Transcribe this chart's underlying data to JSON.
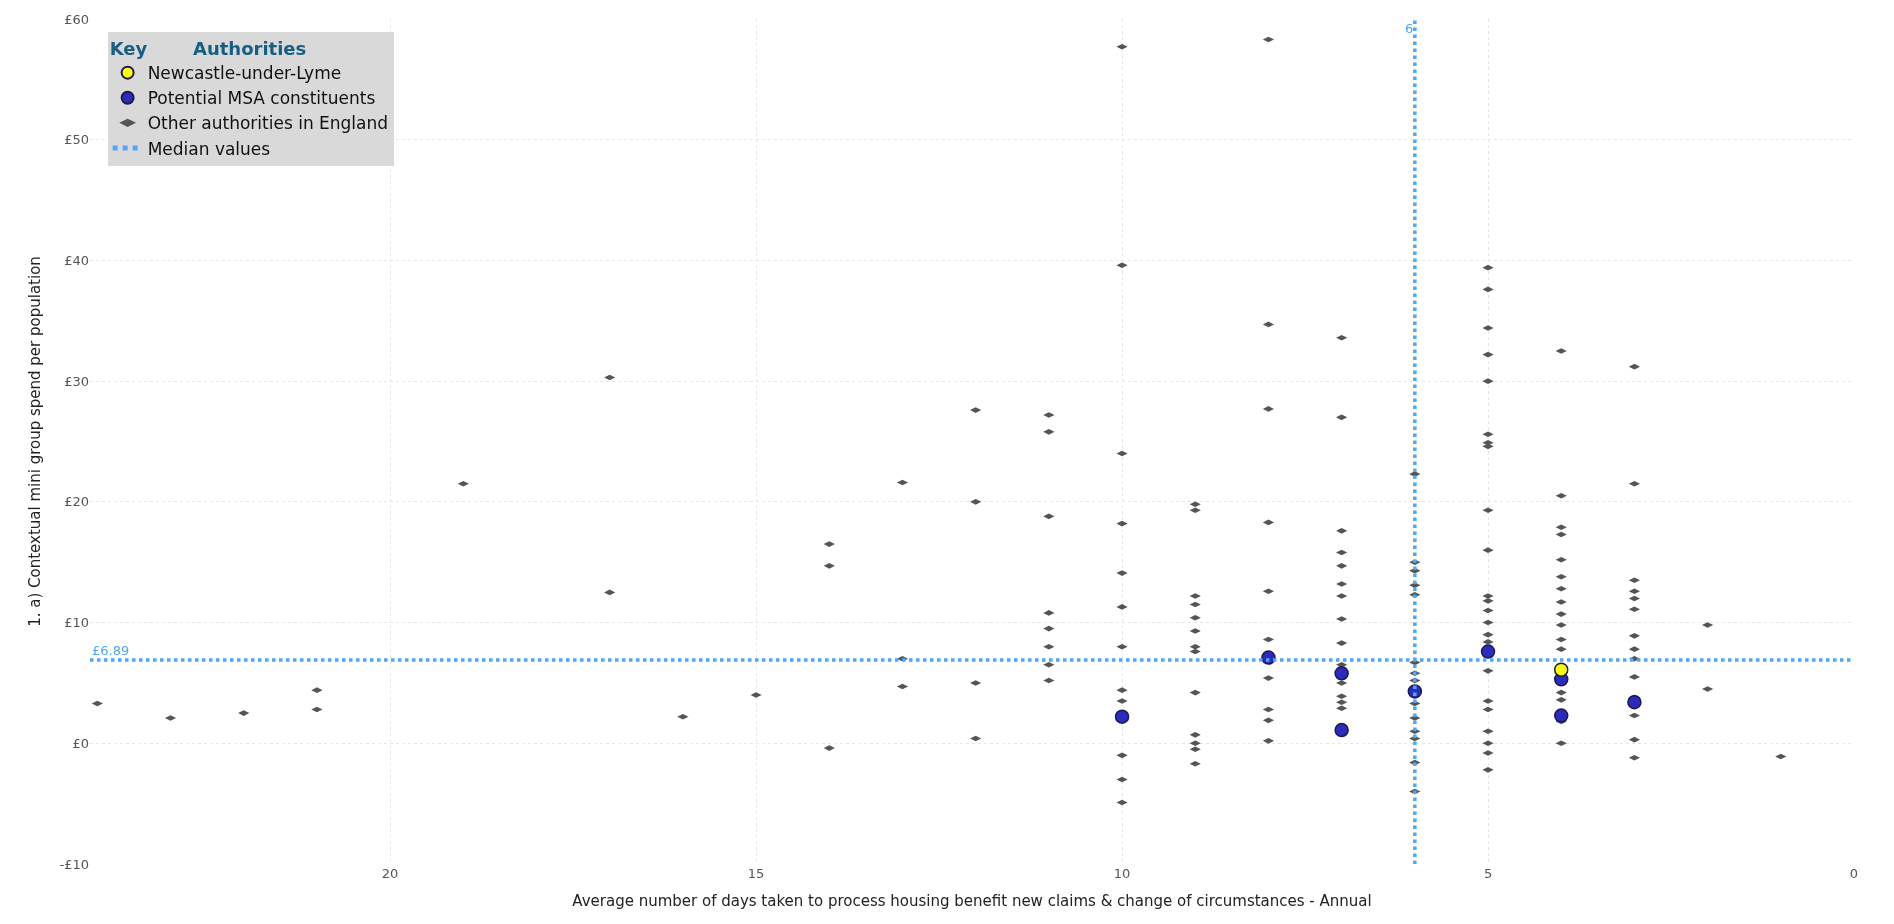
{
  "chart_data": {
    "type": "scatter",
    "xlabel": "Average number of days taken to process housing benefit new claims & change of circumstances - Annual",
    "ylabel": "1. a) Contextual mini group spend per population",
    "legend_title": "Authorities",
    "annotations": [
      "Key",
      "Median values"
    ],
    "xlim": [
      24.1,
      0
    ],
    "xticks": [
      0,
      5,
      10,
      15,
      20
    ],
    "ylim": [
      -10,
      60
    ],
    "yticks": [
      {
        "value": -10,
        "label": "-£10"
      },
      {
        "value": 0,
        "label": "£0"
      },
      {
        "value": 10,
        "label": "£10"
      },
      {
        "value": 20,
        "label": "£20"
      },
      {
        "value": 30,
        "label": "£30"
      },
      {
        "value": 40,
        "label": "£40"
      },
      {
        "value": 50,
        "label": "£50"
      },
      {
        "value": 60,
        "label": "£60"
      }
    ],
    "grid": true,
    "legend": "top left",
    "ref_lines": [
      {
        "axis": "x",
        "value": 6,
        "label": "6",
        "color": "#4da6ff",
        "line_style": "dotted"
      },
      {
        "axis": "y",
        "value": 6.89,
        "label": "£6.89",
        "color": "#4da6ff",
        "line_style": "dotted"
      }
    ],
    "series": [
      {
        "name": "Other authorities in England",
        "color": "#555555",
        "x": [
          24,
          23,
          22,
          21,
          21,
          19,
          17,
          17,
          16,
          15,
          14,
          14,
          14,
          13,
          13,
          13,
          12,
          12,
          12,
          12,
          11,
          11,
          11,
          11,
          11,
          11,
          11,
          11,
          10,
          10,
          10,
          10,
          10,
          10,
          10,
          10,
          10,
          10,
          10,
          10,
          9,
          9,
          9,
          9,
          9,
          9,
          9,
          9,
          9,
          9,
          9,
          9,
          9,
          8,
          8,
          8,
          8,
          8,
          8,
          8,
          8,
          8,
          8,
          7,
          7,
          7,
          7,
          7,
          7,
          7,
          7,
          7,
          7,
          7,
          7,
          7,
          7,
          6,
          6,
          6,
          6,
          6,
          6,
          6,
          6,
          6,
          6,
          6,
          6,
          6,
          6,
          5,
          5,
          5,
          5,
          5,
          5,
          5,
          5,
          5,
          5,
          5,
          5,
          5,
          5,
          5,
          5,
          5,
          5,
          5,
          5,
          5,
          5,
          5,
          4,
          4,
          4,
          4,
          4,
          4,
          4,
          4,
          4,
          4,
          4,
          4,
          4,
          4,
          4,
          4,
          3,
          3,
          3,
          3,
          3,
          3,
          3,
          3,
          3,
          3,
          3,
          3,
          3,
          3,
          2,
          2,
          1
        ],
        "values": [
          3.3,
          2.1,
          2.5,
          4.4,
          2.8,
          21.5,
          30.3,
          12.5,
          2.2,
          4.0,
          16.5,
          14.7,
          -0.4,
          21.6,
          7.0,
          4.7,
          27.6,
          20.0,
          5.0,
          0.4,
          27.2,
          25.8,
          18.8,
          10.8,
          9.5,
          8.0,
          6.5,
          5.2,
          57.7,
          39.6,
          24.0,
          18.2,
          14.1,
          11.3,
          8.0,
          4.4,
          3.5,
          -1.0,
          -3.0,
          -4.9,
          19.8,
          19.3,
          12.2,
          11.5,
          10.4,
          9.3,
          8.0,
          7.6,
          4.2,
          0.7,
          0.0,
          -0.5,
          -1.7,
          58.3,
          34.7,
          27.7,
          18.3,
          12.6,
          8.6,
          5.4,
          2.8,
          1.9,
          0.2,
          33.6,
          27.0,
          17.6,
          15.8,
          14.7,
          13.2,
          12.2,
          10.3,
          8.3,
          6.5,
          5.0,
          3.9,
          3.4,
          2.9,
          22.3,
          15.0,
          14.3,
          13.1,
          12.3,
          6.7,
          5.8,
          5.2,
          3.3,
          2.1,
          1.0,
          0.4,
          -1.6,
          -4.0,
          39.4,
          37.6,
          34.4,
          32.2,
          30.0,
          25.6,
          24.9,
          24.6,
          19.3,
          16.0,
          12.2,
          11.8,
          11.0,
          10.0,
          9.0,
          8.4,
          6.0,
          3.5,
          2.8,
          1.0,
          0.0,
          -0.8,
          -2.2,
          32.5,
          20.5,
          17.9,
          17.3,
          15.2,
          13.8,
          12.8,
          11.7,
          10.7,
          9.8,
          8.6,
          7.8,
          4.2,
          3.6,
          1.8,
          0.0,
          31.2,
          21.5,
          13.5,
          12.6,
          12.0,
          11.1,
          8.9,
          7.8,
          7.0,
          5.5,
          3.8,
          2.3,
          0.3,
          -1.2,
          9.8,
          4.5,
          -1.1
        ]
      },
      {
        "name": "Potential MSA constituents",
        "color": "#2b2bbf",
        "marker": "circle",
        "x": [
          10,
          8,
          7,
          7,
          6,
          5,
          4,
          4,
          3
        ],
        "values": [
          2.2,
          7.1,
          5.8,
          1.1,
          4.3,
          7.6,
          5.3,
          2.3,
          3.4
        ]
      },
      {
        "name": "Newcastle-under-Lyme",
        "color": "#ffff00",
        "marker": "circle",
        "x": [
          4
        ],
        "values": [
          6.1
        ]
      }
    ]
  }
}
